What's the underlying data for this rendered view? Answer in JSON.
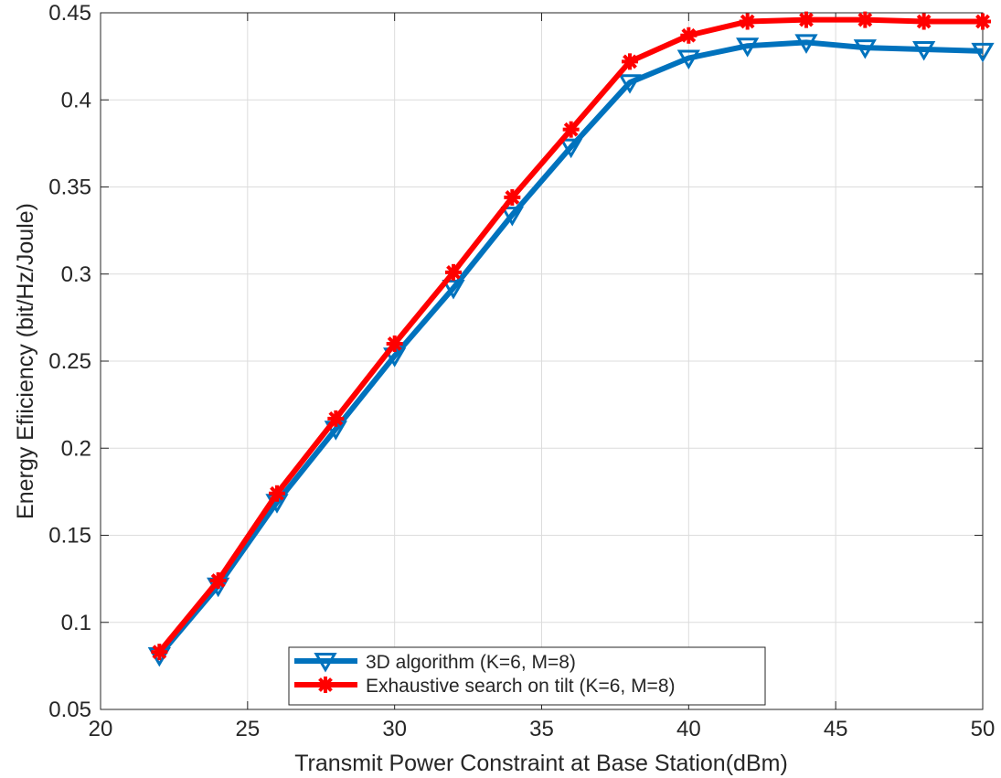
{
  "chart_data": {
    "type": "line",
    "xlabel": "Transmit Power Constraint at Base Station(dBm)",
    "ylabel": "Energy Efiiciency (bit/Hz/Joule)",
    "xlim": [
      20,
      50
    ],
    "ylim": [
      0.05,
      0.45
    ],
    "xticks": [
      20,
      25,
      30,
      35,
      40,
      45,
      50
    ],
    "xtick_labels": [
      "20",
      "25",
      "30",
      "35",
      "40",
      "45",
      "50"
    ],
    "yticks": [
      0.05,
      0.1,
      0.15,
      0.2,
      0.25,
      0.3,
      0.35,
      0.4,
      0.45
    ],
    "ytick_labels": [
      "0.05",
      "0.1",
      "0.15",
      "0.2",
      "0.25",
      "0.3",
      "0.35",
      "0.4",
      "0.45"
    ],
    "grid": true,
    "legend_position": "bottom-center",
    "x": [
      22,
      24,
      26,
      28,
      30,
      32,
      34,
      36,
      38,
      40,
      42,
      44,
      46,
      48,
      50
    ],
    "series": [
      {
        "name": "3D algorithm (K=6, M=8)",
        "color": "#0072BD",
        "marker": "triangle-down",
        "values": [
          0.081,
          0.121,
          0.169,
          0.211,
          0.253,
          0.292,
          0.334,
          0.373,
          0.41,
          0.424,
          0.431,
          0.433,
          0.43,
          0.429,
          0.428
        ]
      },
      {
        "name": "Exhaustive search on tilt (K=6, M=8)",
        "color": "#FF0000",
        "marker": "asterisk",
        "values": [
          0.083,
          0.124,
          0.174,
          0.217,
          0.26,
          0.301,
          0.344,
          0.383,
          0.422,
          0.437,
          0.445,
          0.446,
          0.446,
          0.445,
          0.445
        ]
      }
    ]
  }
}
